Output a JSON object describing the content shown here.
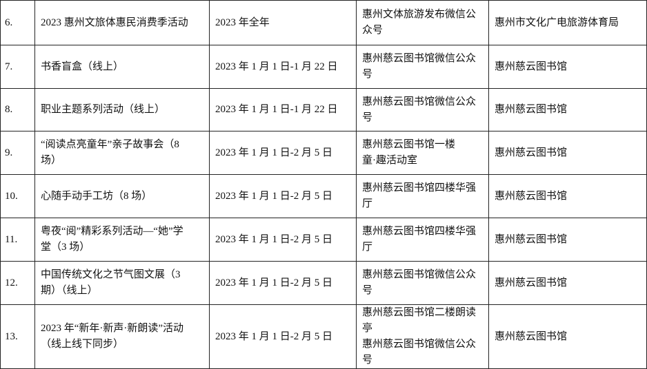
{
  "rows": [
    {
      "num": "6.",
      "name": "2023 惠州文旅体惠民消费季活动",
      "time": "2023 年全年",
      "place": "惠州文体旅游发布微信公\n众号",
      "organizer": "惠州市文化广电旅游体育局"
    },
    {
      "num": "7.",
      "name": "书香盲盒（线上）",
      "time": "2023 年 1 月 1 日-1 月 22 日",
      "place": "惠州慈云图书馆微信公众\n号",
      "organizer": "惠州慈云图书馆"
    },
    {
      "num": "8.",
      "name": "职业主题系列活动（线上）",
      "time": "2023 年 1 月 1 日-1 月 22 日",
      "place": "惠州慈云图书馆微信公众\n号",
      "organizer": "惠州慈云图书馆"
    },
    {
      "num": "9.",
      "name": "“阅读点亮童年”亲子故事会（8\n场）",
      "time": "2023 年 1 月 1 日-2 月 5 日",
      "place": "惠州慈云图书馆一楼\n童·趣活动室",
      "organizer": "惠州慈云图书馆"
    },
    {
      "num": "10.",
      "name": "心随手动手工坊（8 场）",
      "time": "2023 年 1 月 1 日-2 月 5 日",
      "place": "惠州慈云图书馆四楼华强\n厅",
      "organizer": "惠州慈云图书馆"
    },
    {
      "num": "11.",
      "name": "粤夜“阅”精彩系列活动—“她”学\n堂（3 场）",
      "time": "2023 年 1 月 1 日-2 月 5 日",
      "place": "惠州慈云图书馆四楼华强\n厅",
      "organizer": "惠州慈云图书馆"
    },
    {
      "num": "12.",
      "name": "中国传统文化之节气图文展（3\n期）（线上）",
      "time": "2023 年 1 月 1 日-2 月 5 日",
      "place": "惠州慈云图书馆微信公众\n号",
      "organizer": "惠州慈云图书馆"
    },
    {
      "num": "13.",
      "name": "2023 年“新年·新声·新朗读”活动\n（线上线下同步）",
      "time": "2023 年 1 月 1 日-2 月 5 日",
      "place": "惠州慈云图书馆二楼朗读\n亭\n惠州慈云图书馆微信公众\n号",
      "organizer": "惠州慈云图书馆"
    }
  ]
}
